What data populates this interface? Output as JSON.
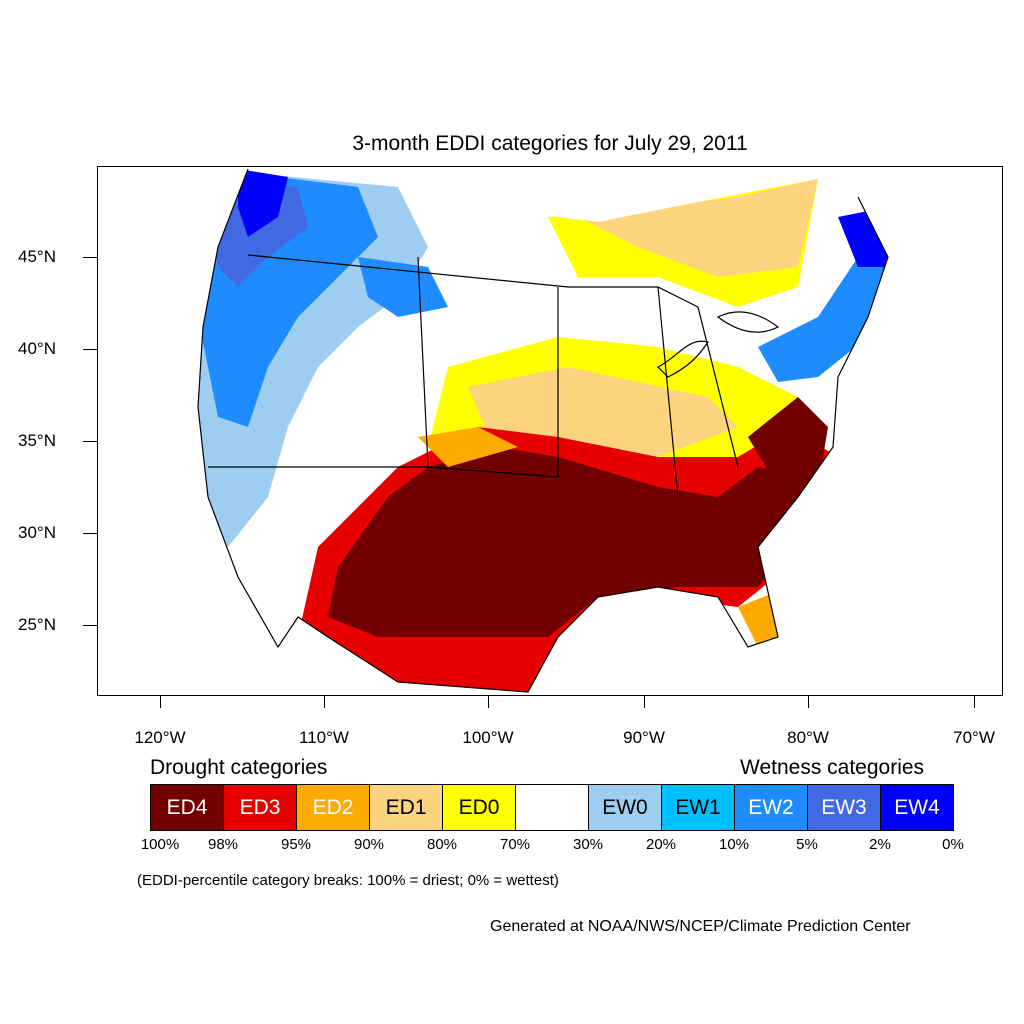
{
  "title": "3-month EDDI categories for July 29, 2011",
  "lat_labels": [
    "45°N",
    "40°N",
    "35°N",
    "30°N",
    "25°N"
  ],
  "lon_labels": [
    "120°W",
    "110°W",
    "100°W",
    "90°W",
    "80°W",
    "70°W"
  ],
  "legend": {
    "drought_heading": "Drought categories",
    "wetness_heading": "Wetness categories",
    "categories": [
      {
        "label": "ED4",
        "color": "#730000",
        "text_color": "#ffffff"
      },
      {
        "label": "ED3",
        "color": "#e60000",
        "text_color": "#ffffff"
      },
      {
        "label": "ED2",
        "color": "#ffaa00",
        "text_color": "#ffffff"
      },
      {
        "label": "ED1",
        "color": "#fcd37f",
        "text_color": "#000000"
      },
      {
        "label": "ED0",
        "color": "#ffff00",
        "text_color": "#000000"
      },
      {
        "label": "",
        "color": "#ffffff",
        "text_color": "#000000"
      },
      {
        "label": "EW0",
        "color": "#9dcdf0",
        "text_color": "#000000"
      },
      {
        "label": "EW1",
        "color": "#00bfff",
        "text_color": "#000000"
      },
      {
        "label": "EW2",
        "color": "#1e8bff",
        "text_color": "#ffffff"
      },
      {
        "label": "EW3",
        "color": "#4169e1",
        "text_color": "#ffffff"
      },
      {
        "label": "EW4",
        "color": "#0000ff",
        "text_color": "#ffffff"
      }
    ],
    "percent_breaks": [
      "100%",
      "98%",
      "95%",
      "90%",
      "80%",
      "70%",
      "30%",
      "20%",
      "10%",
      "5%",
      "2%",
      "0%"
    ]
  },
  "note": "(EDDI-percentile category breaks: 100% = driest; 0% = wettest)",
  "credit": "Generated at NOAA/NWS/NCEP/Climate Prediction Center"
}
